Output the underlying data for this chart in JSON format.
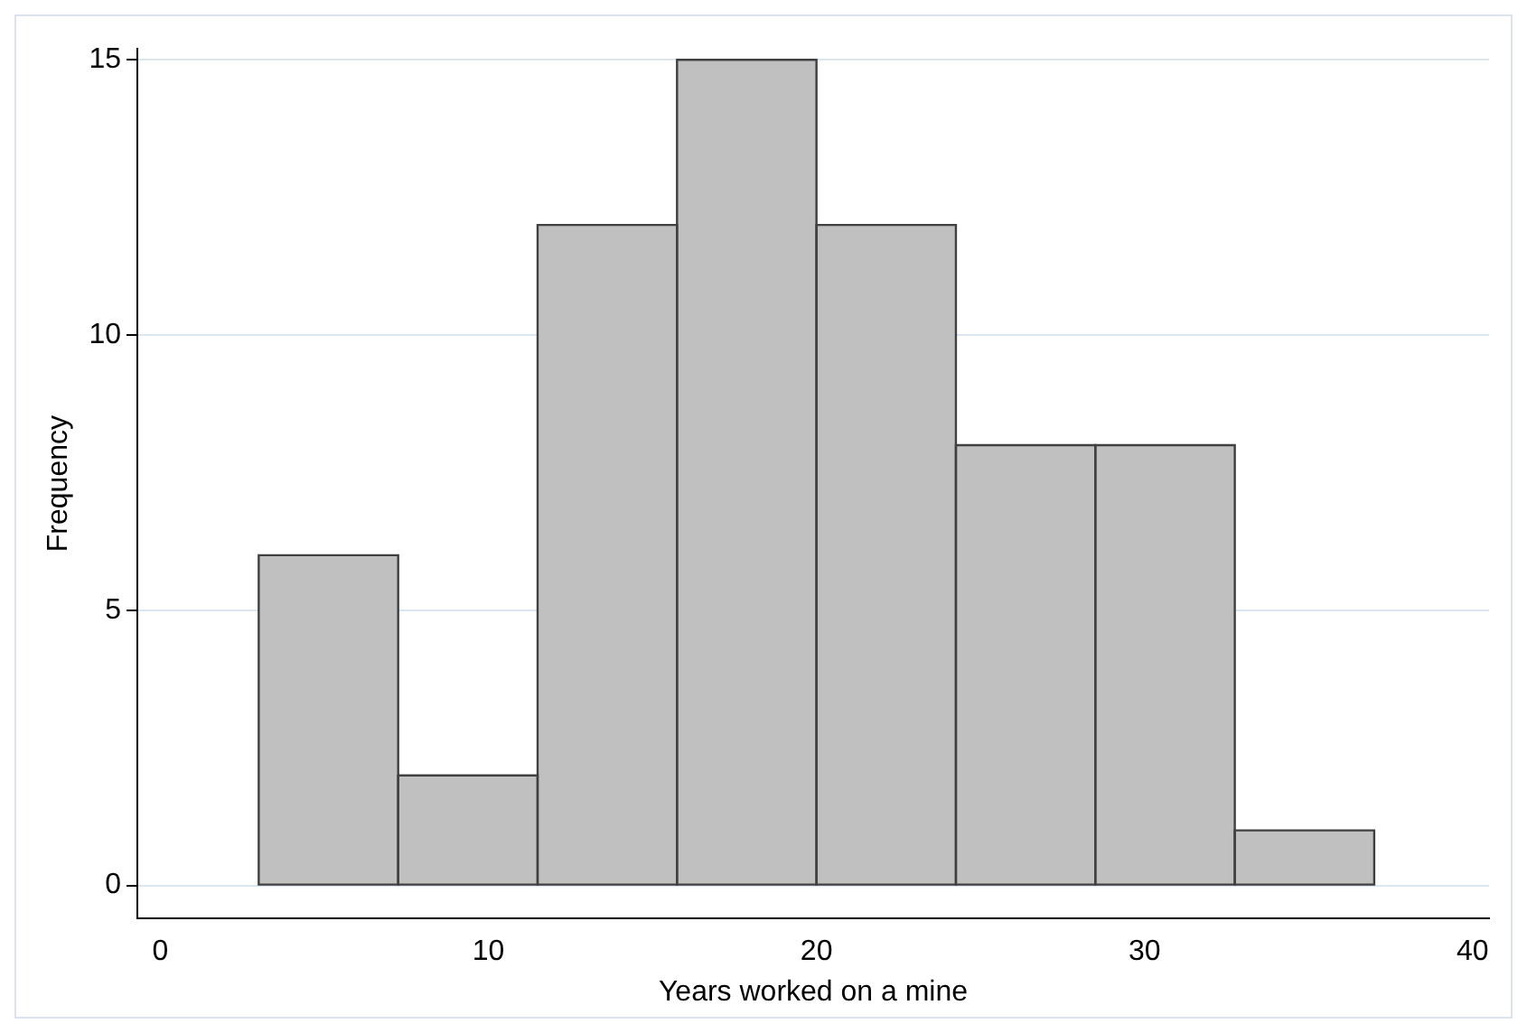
{
  "chart_data": {
    "type": "histogram",
    "xlabel": "Years worked on a mine",
    "ylabel": "Frequency",
    "bins": [
      3,
      7.25,
      11.5,
      15.75,
      20,
      24.25,
      28.5,
      32.75,
      37
    ],
    "values": [
      6,
      2,
      12,
      15,
      12,
      8,
      8,
      1
    ],
    "color": "#c0c0c0",
    "xlim": [
      -0.7,
      40.5
    ],
    "xticks": [
      0,
      10,
      20,
      30,
      40
    ],
    "ylim": [
      -0.6,
      15.2
    ],
    "yticks": [
      0,
      5,
      10,
      15
    ],
    "grid": "y",
    "legend": false
  }
}
